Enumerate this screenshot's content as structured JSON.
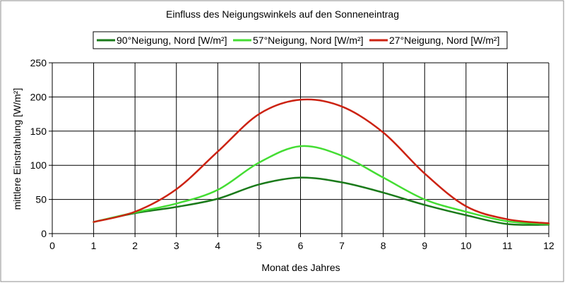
{
  "chart_data": {
    "type": "line",
    "title": "Einfluss des Neigungswinkels auf den Sonneneintrag",
    "xlabel": "Monat des Jahres",
    "ylabel": "mittlere Einstrahlung [W/m²]",
    "xlim": [
      0,
      12
    ],
    "ylim": [
      0,
      250
    ],
    "xticks": [
      0,
      1,
      2,
      3,
      4,
      5,
      6,
      7,
      8,
      9,
      10,
      11,
      12
    ],
    "yticks": [
      0,
      50,
      100,
      150,
      200,
      250
    ],
    "grid": true,
    "legend_position": "top",
    "series": [
      {
        "name": "90°Neigung, Nord [W/m²]",
        "color": "#1a7a1a",
        "x": [
          1,
          2,
          3,
          4,
          5,
          6,
          7,
          8,
          9,
          10,
          11,
          12
        ],
        "y": [
          17,
          30,
          39,
          51,
          72,
          82,
          75,
          60,
          42,
          27,
          14,
          13
        ]
      },
      {
        "name": "57°Neigung, Nord [W/m²]",
        "color": "#44dd33",
        "x": [
          1,
          2,
          3,
          4,
          5,
          6,
          7,
          8,
          9,
          10,
          11,
          12
        ],
        "y": [
          17,
          31,
          44,
          64,
          104,
          128,
          114,
          82,
          50,
          32,
          18,
          14
        ]
      },
      {
        "name": "27°Neigung, Nord [W/m²]",
        "color": "#cc2211",
        "x": [
          1,
          2,
          3,
          4,
          5,
          6,
          7,
          8,
          9,
          10,
          11,
          12
        ],
        "y": [
          17,
          32,
          65,
          120,
          175,
          196,
          186,
          148,
          88,
          40,
          21,
          15
        ]
      }
    ]
  }
}
